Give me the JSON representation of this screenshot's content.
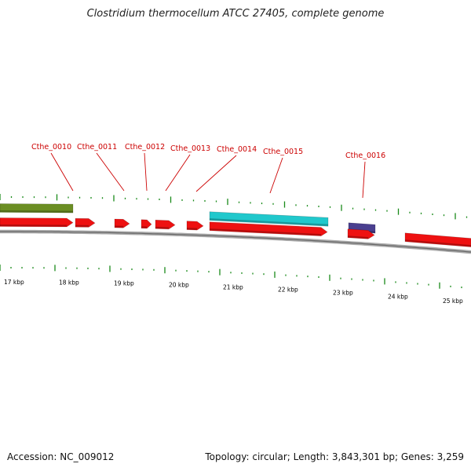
{
  "title": "Clostridium thermocellum ATCC 27405, complete genome",
  "footer": {
    "accession": "Accession: NC_009012",
    "topology": "Topology: circular; Length: 3,843,301 bp; Genes: 3,259"
  },
  "colors": {
    "cds": "#ee1111",
    "olive": "#6b8e23",
    "cyan": "#20c8cc",
    "purple": "#4a3f8f",
    "backbone": "#888888",
    "tick": "#1a8a1a",
    "label": "#cc0000"
  },
  "gene_labels": [
    "Cthe_0010",
    "Cthe_0011",
    "Cthe_0012",
    "Cthe_0013",
    "Cthe_0014",
    "Cthe_0015",
    "Cthe_0016"
  ],
  "kbp_labels": [
    "17 kbp",
    "18 kbp",
    "19 kbp",
    "20 kbp",
    "21 kbp",
    "22 kbp",
    "23 kbp",
    "24 kbp",
    "25 kbp"
  ]
}
